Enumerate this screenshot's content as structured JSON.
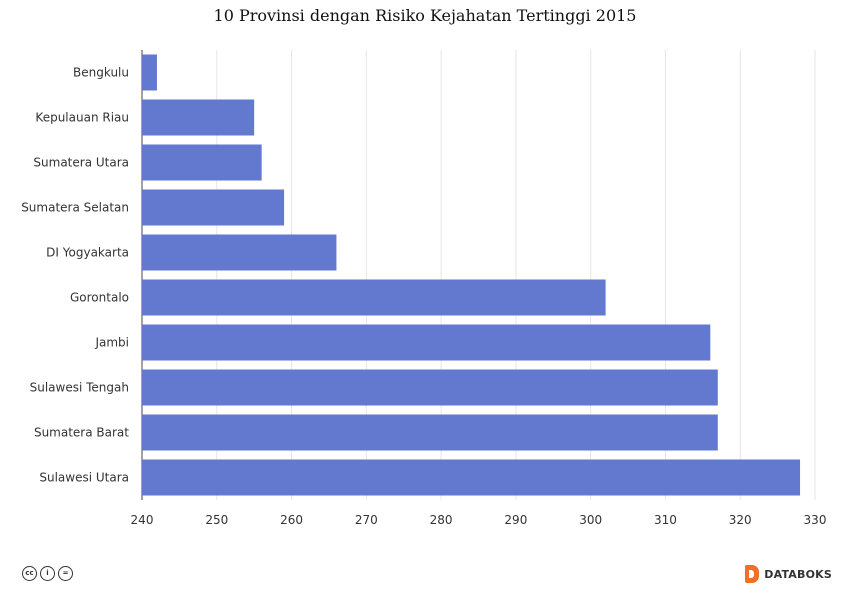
{
  "chart_data": {
    "type": "bar",
    "orientation": "horizontal",
    "title": "10 Provinsi dengan Risiko Kejahatan Tertinggi 2015",
    "xlabel": "",
    "ylabel": "",
    "categories": [
      "Bengkulu",
      "Kepulauan Riau",
      "Sumatera Utara",
      "Sumatera Selatan",
      "DI Yogyakarta",
      "Gorontalo",
      "Jambi",
      "Sulawesi Tengah",
      "Sumatera Barat",
      "Sulawesi Utara"
    ],
    "values": [
      242,
      255,
      256,
      259,
      266,
      302,
      316,
      317,
      317,
      328
    ],
    "xlim": [
      240,
      330
    ],
    "xticks": [
      "240",
      "250",
      "260",
      "270",
      "280",
      "290",
      "300",
      "310",
      "320",
      "330"
    ],
    "bar_color": "#6279cf",
    "grid": true
  },
  "footer": {
    "license_icons": [
      "cc-icon",
      "by-icon",
      "nd-icon"
    ],
    "license_glyphs": [
      "cc",
      "i",
      "="
    ],
    "brand": "DATABOKS",
    "brand_color": "#f0702a"
  }
}
